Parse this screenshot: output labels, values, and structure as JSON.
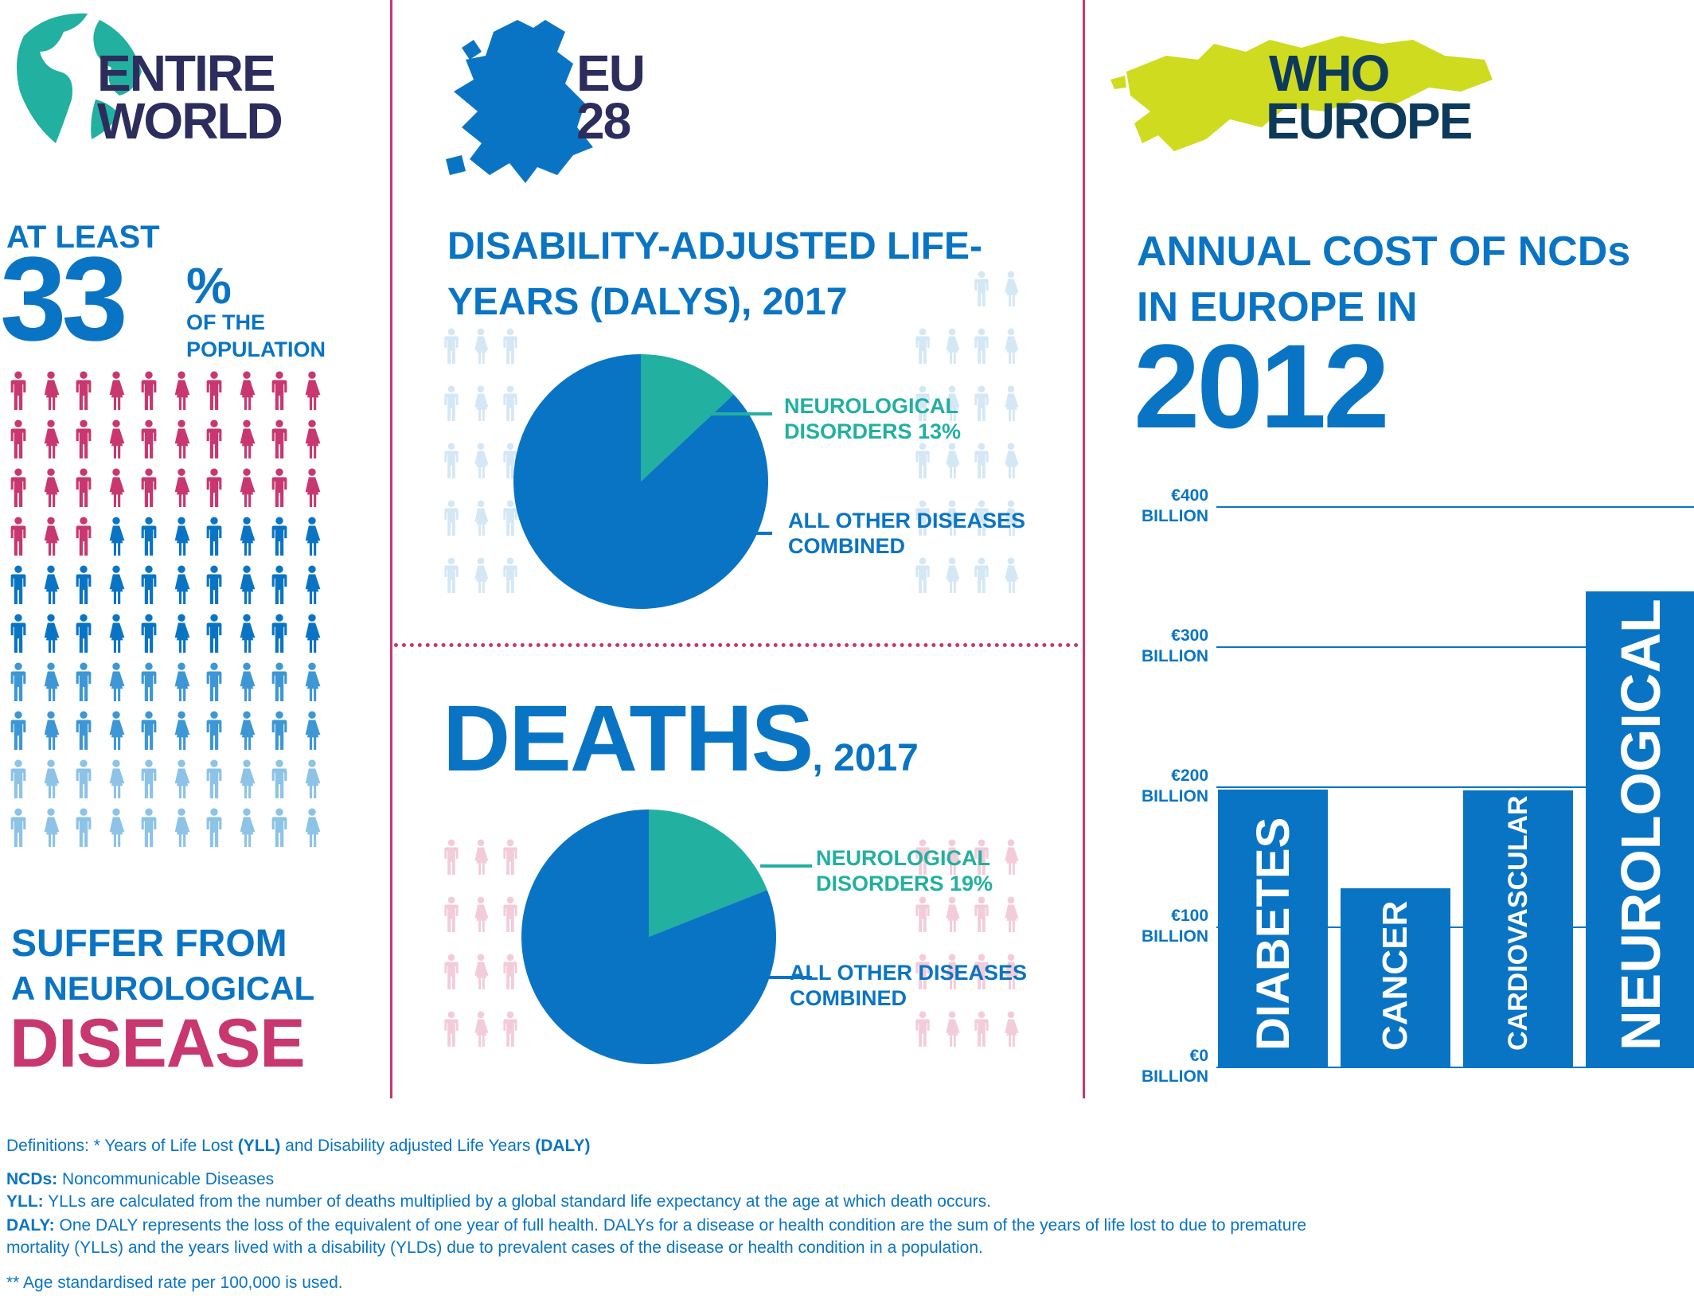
{
  "colors": {
    "pink": "#c83770",
    "blue": "#0a74c4",
    "light_blue": "#8cc3e6",
    "pale_blue": "#d4e7f5",
    "pale_pink": "#f3ccd9",
    "teal": "#22b0a0",
    "navy": "#2c2d5c",
    "lime": "#cfdb1f"
  },
  "panel1": {
    "title_line1": "ENTIRE",
    "title_line2": "WORLD",
    "at_least": "AT LEAST",
    "percent_num": "33",
    "percent_sign": "%",
    "of_the": "OF THE",
    "population": "POPULATION",
    "suffer": "SUFFER FROM",
    "a_neuro": "A NEUROLOGICAL",
    "disease": "DISEASE",
    "people_share": 0.33
  },
  "panel2": {
    "title_line1": "EU",
    "title_line2": "28",
    "dalys_line1": "DISABILITY-ADJUSTED LIFE-",
    "dalys_line2": "YEARS (DALYS), 2017",
    "deaths_big": "DEATHS",
    "deaths_small": ", 2017",
    "neuro_label_1": "NEUROLOGICAL",
    "neuro_label_2_dalys": "DISORDERS 13%",
    "neuro_label_2_deaths": "DISORDERS 19%",
    "other_label_1": "ALL OTHER DISEASES",
    "other_label_2": "COMBINED"
  },
  "panel3": {
    "title_line1": "WHO",
    "title_line2": "EUROPE",
    "cost_line1": "ANNUAL COST OF NCDs",
    "cost_line2": "IN EUROPE IN",
    "year": "2012"
  },
  "chart_data": [
    {
      "type": "pie",
      "title": "DISABILITY-ADJUSTED LIFE-YEARS (DALYS), 2017",
      "slices": [
        {
          "name": "NEUROLOGICAL DISORDERS",
          "value": 13
        },
        {
          "name": "ALL OTHER DISEASES COMBINED",
          "value": 87
        }
      ]
    },
    {
      "type": "pie",
      "title": "DEATHS, 2017",
      "slices": [
        {
          "name": "NEUROLOGICAL DISORDERS",
          "value": 19
        },
        {
          "name": "ALL OTHER DISEASES COMBINED",
          "value": 81
        }
      ]
    },
    {
      "type": "bar",
      "title": "ANNUAL COST OF NCDs IN EUROPE IN 2012",
      "categories": [
        "DIABETES",
        "CANCER",
        "CARDIOVASCULAR",
        "NEUROLOGICAL"
      ],
      "values": [
        198,
        127,
        197,
        339
      ],
      "ylim": [
        0,
        400
      ],
      "yticks": [
        {
          "value": 0,
          "label1": "€0",
          "label2": "BILLION"
        },
        {
          "value": 100,
          "label1": "€100",
          "label2": "BILLION"
        },
        {
          "value": 200,
          "label1": "€200",
          "label2": "BILLION"
        },
        {
          "value": 300,
          "label1": "€300",
          "label2": "BILLION"
        },
        {
          "value": 400,
          "label1": "€400",
          "label2": "BILLION"
        }
      ]
    }
  ],
  "footer": {
    "line1_a": "Definitions: * Years of Life Lost ",
    "line1_b": "(YLL)",
    "line1_c": " and Disability adjusted Life Years ",
    "line1_d": "(DALY)",
    "ncd_term": "NCDs:",
    "ncd_def": " Noncommunicable Diseases",
    "yll_term": "YLL:",
    "yll_def": " YLLs are calculated from the number of deaths multiplied by a global standard life expectancy at the age at which death occurs.",
    "daly_term": "DALY:",
    "daly_def1": " One DALY represents the loss of the equivalent of one year of full health. DALYs for a disease or health condition are the sum of the years of life lost to due to premature",
    "daly_def2": "mortality (YLLs) and the years lived with a disability (YLDs) due to prevalent cases of the disease or health condition in a population.",
    "note": "** Age standardised rate per 100,000 is used."
  }
}
